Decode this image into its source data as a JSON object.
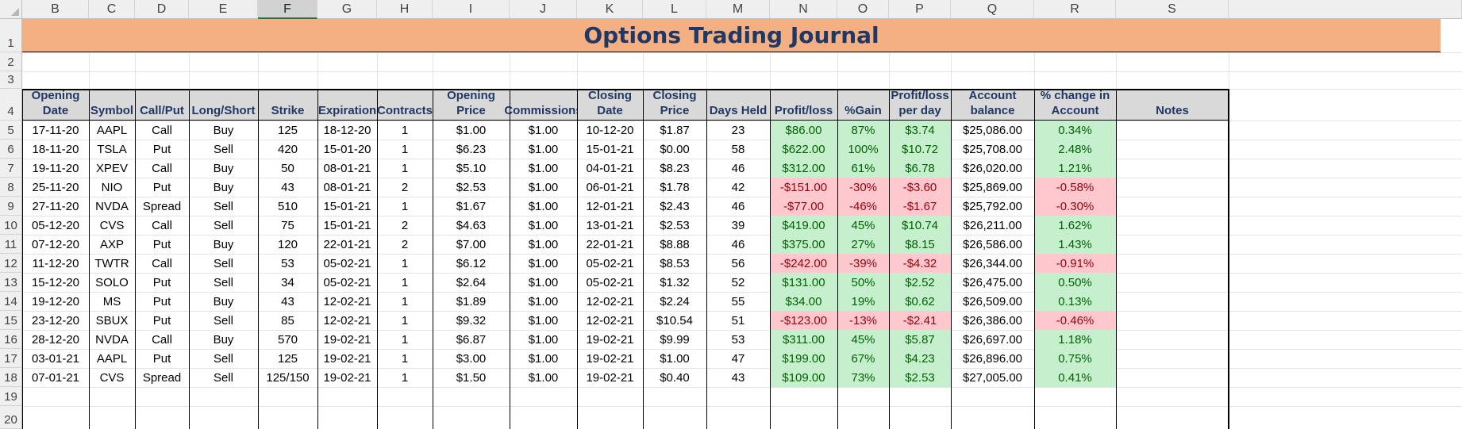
{
  "sheet": {
    "title": "Options Trading Journal",
    "columns": [
      "B",
      "C",
      "D",
      "E",
      "F",
      "G",
      "H",
      "I",
      "J",
      "K",
      "L",
      "M",
      "N",
      "O",
      "P",
      "Q",
      "R",
      "S"
    ],
    "selected_column": "F",
    "row_numbers": [
      "1",
      "2",
      "3",
      "4",
      "5",
      "6",
      "7",
      "8",
      "9",
      "10",
      "11",
      "12",
      "13",
      "14",
      "15",
      "16",
      "17",
      "18",
      "19",
      "20"
    ],
    "headers": [
      "Opening Date",
      "Symbol",
      "Call/Put",
      "Long/Short",
      "Strike",
      "Expiration",
      "Contracts",
      "Opening Price",
      "Commissions",
      "Closing Date",
      "Closing Price",
      "Days Held",
      "Profit/loss",
      "%Gain",
      "Profit/loss per day",
      "Account balance",
      "% change in Account",
      "Notes"
    ],
    "rows": [
      {
        "opening_date": "17-11-20",
        "symbol": "AAPL",
        "call_put": "Call",
        "long_short": "Buy",
        "strike": "125",
        "expiration": "18-12-20",
        "contracts": "1",
        "opening_price": "$1.00",
        "commissions": "$1.00",
        "closing_date": "10-12-20",
        "closing_price": "$1.87",
        "days_held": "23",
        "profit_loss": "$86.00",
        "gain": "87%",
        "pl_per_day": "$3.74",
        "balance": "$25,086.00",
        "pct_change": "0.34%",
        "notes": "",
        "status": "pos"
      },
      {
        "opening_date": "18-11-20",
        "symbol": "TSLA",
        "call_put": "Put",
        "long_short": "Sell",
        "strike": "420",
        "expiration": "15-01-20",
        "contracts": "1",
        "opening_price": "$6.23",
        "commissions": "$1.00",
        "closing_date": "15-01-21",
        "closing_price": "$0.00",
        "days_held": "58",
        "profit_loss": "$622.00",
        "gain": "100%",
        "pl_per_day": "$10.72",
        "balance": "$25,708.00",
        "pct_change": "2.48%",
        "notes": "",
        "status": "pos"
      },
      {
        "opening_date": "19-11-20",
        "symbol": "XPEV",
        "call_put": "Call",
        "long_short": "Buy",
        "strike": "50",
        "expiration": "08-01-21",
        "contracts": "1",
        "opening_price": "$5.10",
        "commissions": "$1.00",
        "closing_date": "04-01-21",
        "closing_price": "$8.23",
        "days_held": "46",
        "profit_loss": "$312.00",
        "gain": "61%",
        "pl_per_day": "$6.78",
        "balance": "$26,020.00",
        "pct_change": "1.21%",
        "notes": "",
        "status": "pos"
      },
      {
        "opening_date": "25-11-20",
        "symbol": "NIO",
        "call_put": "Put",
        "long_short": "Buy",
        "strike": "43",
        "expiration": "08-01-21",
        "contracts": "2",
        "opening_price": "$2.53",
        "commissions": "$1.00",
        "closing_date": "06-01-21",
        "closing_price": "$1.78",
        "days_held": "42",
        "profit_loss": "-$151.00",
        "gain": "-30%",
        "pl_per_day": "-$3.60",
        "balance": "$25,869.00",
        "pct_change": "-0.58%",
        "notes": "",
        "status": "neg"
      },
      {
        "opening_date": "27-11-20",
        "symbol": "NVDA",
        "call_put": "Spread",
        "long_short": "Sell",
        "strike": "510",
        "expiration": "15-01-21",
        "contracts": "1",
        "opening_price": "$1.67",
        "commissions": "$1.00",
        "closing_date": "12-01-21",
        "closing_price": "$2.43",
        "days_held": "46",
        "profit_loss": "-$77.00",
        "gain": "-46%",
        "pl_per_day": "-$1.67",
        "balance": "$25,792.00",
        "pct_change": "-0.30%",
        "notes": "",
        "status": "neg"
      },
      {
        "opening_date": "05-12-20",
        "symbol": "CVS",
        "call_put": "Call",
        "long_short": "Sell",
        "strike": "75",
        "expiration": "15-01-21",
        "contracts": "2",
        "opening_price": "$4.63",
        "commissions": "$1.00",
        "closing_date": "13-01-21",
        "closing_price": "$2.53",
        "days_held": "39",
        "profit_loss": "$419.00",
        "gain": "45%",
        "pl_per_day": "$10.74",
        "balance": "$26,211.00",
        "pct_change": "1.62%",
        "notes": "",
        "status": "pos"
      },
      {
        "opening_date": "07-12-20",
        "symbol": "AXP",
        "call_put": "Put",
        "long_short": "Buy",
        "strike": "120",
        "expiration": "22-01-21",
        "contracts": "2",
        "opening_price": "$7.00",
        "commissions": "$1.00",
        "closing_date": "22-01-21",
        "closing_price": "$8.88",
        "days_held": "46",
        "profit_loss": "$375.00",
        "gain": "27%",
        "pl_per_day": "$8.15",
        "balance": "$26,586.00",
        "pct_change": "1.43%",
        "notes": "",
        "status": "pos"
      },
      {
        "opening_date": "11-12-20",
        "symbol": "TWTR",
        "call_put": "Call",
        "long_short": "Sell",
        "strike": "53",
        "expiration": "05-02-21",
        "contracts": "1",
        "opening_price": "$6.12",
        "commissions": "$1.00",
        "closing_date": "05-02-21",
        "closing_price": "$8.53",
        "days_held": "56",
        "profit_loss": "-$242.00",
        "gain": "-39%",
        "pl_per_day": "-$4.32",
        "balance": "$26,344.00",
        "pct_change": "-0.91%",
        "notes": "",
        "status": "neg"
      },
      {
        "opening_date": "15-12-20",
        "symbol": "SOLO",
        "call_put": "Put",
        "long_short": "Sell",
        "strike": "34",
        "expiration": "05-02-21",
        "contracts": "1",
        "opening_price": "$2.64",
        "commissions": "$1.00",
        "closing_date": "05-02-21",
        "closing_price": "$1.32",
        "days_held": "52",
        "profit_loss": "$131.00",
        "gain": "50%",
        "pl_per_day": "$2.52",
        "balance": "$26,475.00",
        "pct_change": "0.50%",
        "notes": "",
        "status": "pos"
      },
      {
        "opening_date": "19-12-20",
        "symbol": "MS",
        "call_put": "Put",
        "long_short": "Buy",
        "strike": "43",
        "expiration": "12-02-21",
        "contracts": "1",
        "opening_price": "$1.89",
        "commissions": "$1.00",
        "closing_date": "12-02-21",
        "closing_price": "$2.24",
        "days_held": "55",
        "profit_loss": "$34.00",
        "gain": "19%",
        "pl_per_day": "$0.62",
        "balance": "$26,509.00",
        "pct_change": "0.13%",
        "notes": "",
        "status": "pos"
      },
      {
        "opening_date": "23-12-20",
        "symbol": "SBUX",
        "call_put": "Put",
        "long_short": "Sell",
        "strike": "85",
        "expiration": "12-02-21",
        "contracts": "1",
        "opening_price": "$9.32",
        "commissions": "$1.00",
        "closing_date": "12-02-21",
        "closing_price": "$10.54",
        "days_held": "51",
        "profit_loss": "-$123.00",
        "gain": "-13%",
        "pl_per_day": "-$2.41",
        "balance": "$26,386.00",
        "pct_change": "-0.46%",
        "notes": "",
        "status": "neg"
      },
      {
        "opening_date": "28-12-20",
        "symbol": "NVDA",
        "call_put": "Call",
        "long_short": "Buy",
        "strike": "570",
        "expiration": "19-02-21",
        "contracts": "1",
        "opening_price": "$6.87",
        "commissions": "$1.00",
        "closing_date": "19-02-21",
        "closing_price": "$9.99",
        "days_held": "53",
        "profit_loss": "$311.00",
        "gain": "45%",
        "pl_per_day": "$5.87",
        "balance": "$26,697.00",
        "pct_change": "1.18%",
        "notes": "",
        "status": "pos"
      },
      {
        "opening_date": "03-01-21",
        "symbol": "AAPL",
        "call_put": "Put",
        "long_short": "Sell",
        "strike": "125",
        "expiration": "19-02-21",
        "contracts": "1",
        "opening_price": "$3.00",
        "commissions": "$1.00",
        "closing_date": "19-02-21",
        "closing_price": "$1.00",
        "days_held": "47",
        "profit_loss": "$199.00",
        "gain": "67%",
        "pl_per_day": "$4.23",
        "balance": "$26,896.00",
        "pct_change": "0.75%",
        "notes": "",
        "status": "pos"
      },
      {
        "opening_date": "07-01-21",
        "symbol": "CVS",
        "call_put": "Spread",
        "long_short": "Sell",
        "strike": "125/150",
        "expiration": "19-02-21",
        "contracts": "1",
        "opening_price": "$1.50",
        "commissions": "$1.00",
        "closing_date": "19-02-21",
        "closing_price": "$0.40",
        "days_held": "43",
        "profit_loss": "$109.00",
        "gain": "73%",
        "pl_per_day": "$2.53",
        "balance": "$27,005.00",
        "pct_change": "0.41%",
        "notes": "",
        "status": "pos"
      }
    ],
    "colors": {
      "title_band": "#f4b083",
      "title_text": "#1f3864",
      "header_band": "#d9d9d9",
      "positive_fill": "#c6efce",
      "positive_text": "#006100",
      "negative_fill": "#ffc7ce",
      "negative_text": "#9c0006"
    }
  }
}
